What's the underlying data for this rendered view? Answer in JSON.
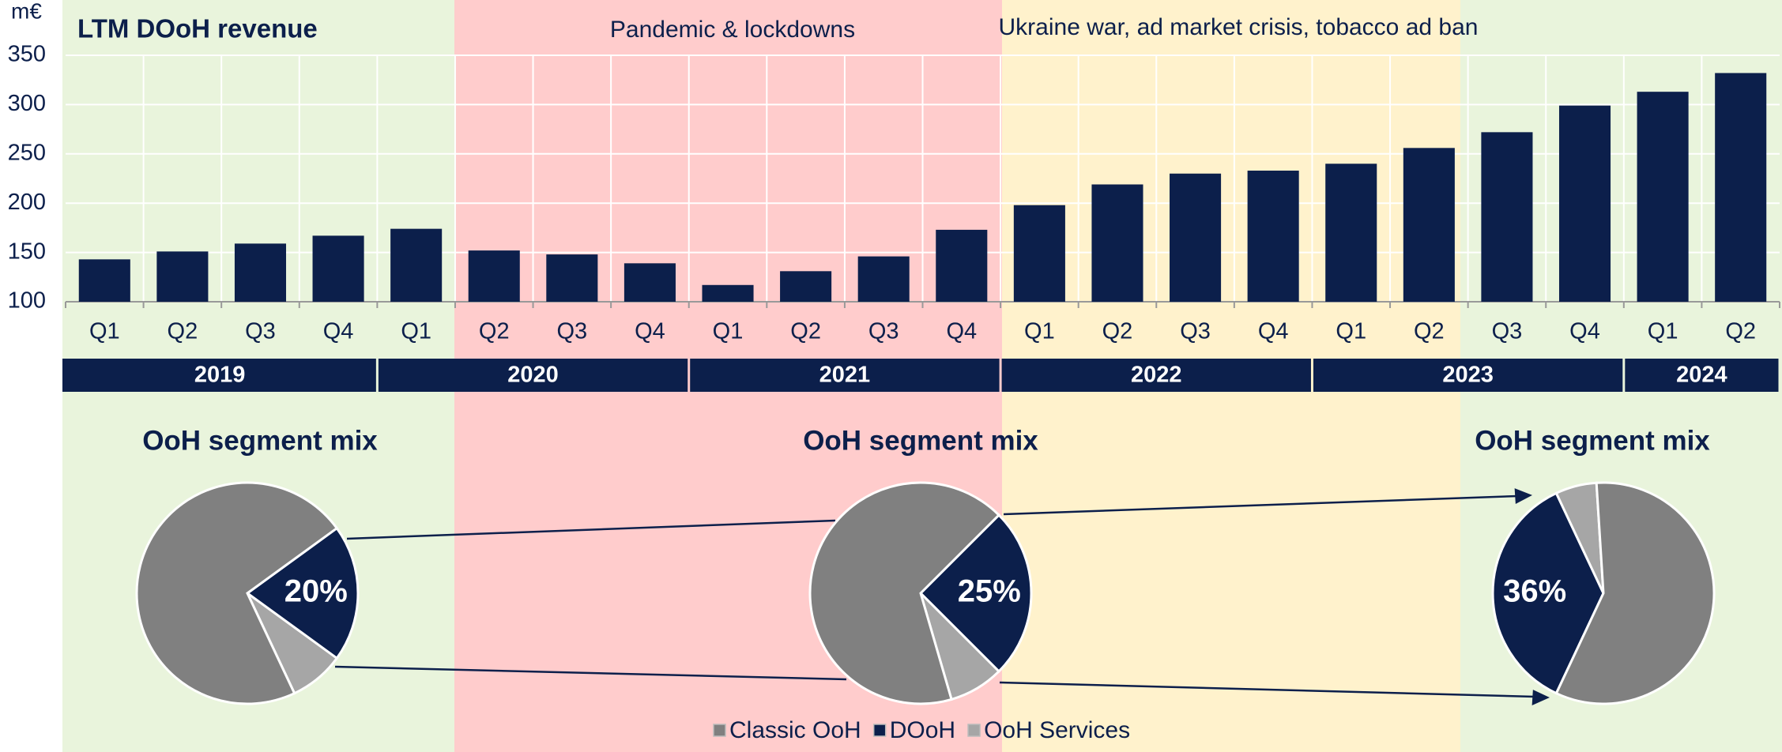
{
  "chart_data": [
    {
      "type": "bar",
      "title": "LTM DOoH revenue",
      "ylabel": "m€",
      "annotations": [
        "Pandemic & lockdowns",
        "Ukraine war, ad market crisis, tobacco ad ban"
      ],
      "categories": [
        "Q1",
        "Q2",
        "Q3",
        "Q4",
        "Q1",
        "Q2",
        "Q3",
        "Q4",
        "Q1",
        "Q2",
        "Q3",
        "Q4",
        "Q1",
        "Q2",
        "Q3",
        "Q4",
        "Q1",
        "Q2",
        "Q3",
        "Q4",
        "Q1",
        "Q2"
      ],
      "groups": [
        "2019",
        "2020",
        "2021",
        "2022",
        "2023",
        "2024"
      ],
      "values": [
        143,
        151,
        159,
        167,
        174,
        152,
        148,
        139,
        117,
        131,
        146,
        173,
        198,
        219,
        230,
        233,
        240,
        256,
        272,
        299,
        313,
        332
      ],
      "color": "#0c1f4b",
      "ylim": [
        100,
        350
      ],
      "yticks": [
        100,
        150,
        200,
        250,
        300,
        350
      ],
      "grid": true
    },
    {
      "type": "pie",
      "title": "OoH segment mix",
      "values": [
        72,
        20,
        8
      ],
      "value_labels": [
        null,
        "20%",
        null
      ]
    },
    {
      "type": "pie",
      "title": "OoH segment mix",
      "values": [
        67,
        25,
        8
      ],
      "value_labels": [
        null,
        "25%",
        null
      ]
    },
    {
      "type": "pie",
      "title": "OoH segment mix",
      "values": [
        58,
        36,
        6
      ],
      "value_labels": [
        null,
        "36%",
        null
      ]
    }
  ],
  "legend": {
    "labels": [
      "Classic OoH",
      "DOoH",
      "OoH Services"
    ],
    "colors": [
      "#808080",
      "#0c1f4b",
      "#a6a6a6"
    ]
  }
}
